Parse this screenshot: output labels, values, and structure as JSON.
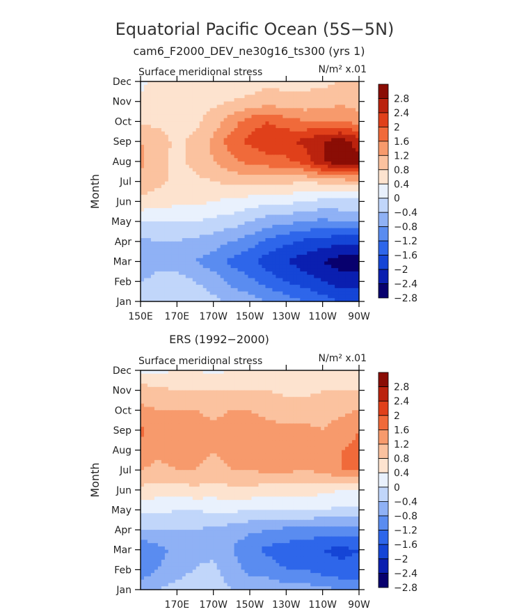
{
  "figure": {
    "title": "Equatorial Pacific Ocean (5S−5N)",
    "subtitle": "cam6_F2000_DEV_ne30g16_ts300 (yrs 1)"
  },
  "chart_data": [
    {
      "type": "heatmap",
      "panel_title": "",
      "variable_label": "Surface meridional stress",
      "units_label": "N/m² x.01",
      "ylabel": "Month",
      "y_ticks": [
        "Jan",
        "Feb",
        "Mar",
        "Apr",
        "May",
        "Jun",
        "Jul",
        "Aug",
        "Sep",
        "Oct",
        "Nov",
        "Dec"
      ],
      "x_ticks": [
        "150E",
        "170E",
        "170W",
        "150W",
        "130W",
        "110W",
        "90W"
      ],
      "x_range_lon": [
        150,
        270
      ],
      "y_range_month": [
        1,
        12
      ],
      "levels": [
        -2.8,
        -2.4,
        -2.0,
        -1.6,
        -1.2,
        -0.8,
        -0.4,
        0.0,
        0.4,
        0.8,
        1.2,
        1.6,
        2.0,
        2.4,
        2.8
      ],
      "colorbar_labels": [
        "2.8",
        "2.4",
        "2",
        "1.6",
        "1.2",
        "0.8",
        "0.4",
        "0",
        "−0.4",
        "−0.8",
        "−1.2",
        "−1.6",
        "−2",
        "−2.4",
        "−2.8"
      ],
      "colors": [
        "#08006e",
        "#0a1fb0",
        "#1545d6",
        "#2e66ea",
        "#5a8cf0",
        "#8fb1f5",
        "#c1d6fa",
        "#e9f1fd",
        "#fde3cf",
        "#fbc29f",
        "#f79a6c",
        "#f06a3a",
        "#e0401a",
        "#bb230e",
        "#8a0d05"
      ],
      "lon": [
        150,
        160,
        170,
        180,
        190,
        200,
        210,
        220,
        230,
        240,
        250,
        260,
        270
      ],
      "months": [
        1,
        2,
        3,
        4,
        5,
        6,
        7,
        8,
        9,
        10,
        11,
        12
      ],
      "values": [
        [
          -0.6,
          -0.4,
          -0.4,
          -0.5,
          -0.7,
          -0.9,
          -1.0,
          -1.2,
          -1.4,
          -1.6,
          -1.8,
          -2.0,
          -2.1
        ],
        [
          -0.8,
          -0.6,
          -0.6,
          -0.8,
          -1.0,
          -1.3,
          -1.5,
          -1.8,
          -2.0,
          -2.2,
          -2.4,
          -2.6,
          -2.6
        ],
        [
          -1.2,
          -1.0,
          -1.0,
          -1.2,
          -1.4,
          -1.7,
          -1.9,
          -2.2,
          -2.4,
          -2.6,
          -2.8,
          -3.0,
          -3.0
        ],
        [
          -0.9,
          -0.8,
          -0.8,
          -0.9,
          -1.0,
          -1.2,
          -1.4,
          -1.7,
          -1.9,
          -2.1,
          -2.2,
          -2.3,
          -2.3
        ],
        [
          -0.4,
          -0.4,
          -0.4,
          -0.4,
          -0.5,
          -0.6,
          -0.8,
          -1.0,
          -1.1,
          -1.2,
          -1.3,
          -1.2,
          -1.2
        ],
        [
          0.3,
          0.2,
          0.1,
          0.1,
          0.0,
          -0.1,
          -0.2,
          -0.3,
          -0.3,
          -0.4,
          -0.5,
          -0.5,
          -0.5
        ],
        [
          0.7,
          0.5,
          0.3,
          0.3,
          0.4,
          0.5,
          0.6,
          0.6,
          0.5,
          0.4,
          0.5,
          0.6,
          0.7
        ],
        [
          0.9,
          0.5,
          0.3,
          0.5,
          0.8,
          1.1,
          1.3,
          1.4,
          1.5,
          1.8,
          2.4,
          2.7,
          2.6
        ],
        [
          0.8,
          0.6,
          0.3,
          0.5,
          0.9,
          1.4,
          1.7,
          1.9,
          1.9,
          2.1,
          2.4,
          2.6,
          2.2
        ],
        [
          0.3,
          0.3,
          0.2,
          0.3,
          0.6,
          1.0,
          1.4,
          1.6,
          1.4,
          1.2,
          1.2,
          1.2,
          1.0
        ],
        [
          0.1,
          0.2,
          0.2,
          0.2,
          0.3,
          0.4,
          0.5,
          0.6,
          0.5,
          0.5,
          0.6,
          0.7,
          0.6
        ],
        [
          -0.1,
          0.1,
          0.1,
          0.1,
          0.2,
          0.2,
          0.2,
          0.3,
          0.3,
          0.3,
          0.3,
          0.4,
          0.4
        ]
      ]
    },
    {
      "type": "heatmap",
      "panel_title": "ERS (1992−2000)",
      "variable_label": "Surface meridional stress",
      "units_label": "N/m² x.01",
      "ylabel": "Month",
      "y_ticks": [
        "Jan",
        "Feb",
        "Mar",
        "Apr",
        "May",
        "Jun",
        "Jul",
        "Aug",
        "Sep",
        "Oct",
        "Nov",
        "Dec"
      ],
      "x_ticks": [
        "170E",
        "170W",
        "150W",
        "130W",
        "110W",
        "90W"
      ],
      "x_range_lon": [
        150,
        270
      ],
      "y_range_month": [
        1,
        12
      ],
      "levels": [
        -2.8,
        -2.4,
        -2.0,
        -1.6,
        -1.2,
        -0.8,
        -0.4,
        0.0,
        0.4,
        0.8,
        1.2,
        1.6,
        2.0,
        2.4,
        2.8
      ],
      "colorbar_labels": [
        "2.8",
        "2.4",
        "2",
        "1.6",
        "1.2",
        "0.8",
        "0.4",
        "0",
        "−0.4",
        "−0.8",
        "−1.2",
        "−1.6",
        "−2",
        "−2.4",
        "−2.8"
      ],
      "colors": [
        "#08006e",
        "#0a1fb0",
        "#1545d6",
        "#2e66ea",
        "#5a8cf0",
        "#8fb1f5",
        "#c1d6fa",
        "#e9f1fd",
        "#fde3cf",
        "#fbc29f",
        "#f79a6c",
        "#f06a3a",
        "#e0401a",
        "#bb230e",
        "#8a0d05"
      ],
      "lon": [
        150,
        160,
        170,
        180,
        190,
        200,
        210,
        220,
        230,
        240,
        250,
        260,
        270
      ],
      "months": [
        1,
        2,
        3,
        4,
        5,
        6,
        7,
        8,
        9,
        10,
        11,
        12
      ],
      "values": [
        [
          -1.0,
          -0.8,
          -0.6,
          -0.5,
          -0.6,
          -0.8,
          -0.9,
          -0.9,
          -1.0,
          -1.0,
          -1.1,
          -1.2,
          -1.2
        ],
        [
          -1.4,
          -1.2,
          -1.0,
          -0.8,
          -0.7,
          -1.0,
          -1.3,
          -1.4,
          -1.6,
          -1.6,
          -1.8,
          -1.9,
          -1.9
        ],
        [
          -1.6,
          -1.3,
          -1.1,
          -0.9,
          -0.9,
          -1.2,
          -1.5,
          -1.7,
          -1.8,
          -1.9,
          -2.0,
          -2.1,
          -2.0
        ],
        [
          -0.8,
          -0.8,
          -0.8,
          -0.8,
          -0.9,
          -1.0,
          -1.1,
          -1.2,
          -1.3,
          -1.3,
          -1.4,
          -1.4,
          -1.3
        ],
        [
          -0.3,
          -0.3,
          -0.4,
          -0.4,
          -0.3,
          -0.3,
          -0.4,
          -0.4,
          -0.4,
          -0.4,
          -0.4,
          -0.5,
          -0.5
        ],
        [
          0.3,
          0.2,
          0.2,
          0.3,
          0.2,
          0.3,
          0.3,
          0.2,
          0.2,
          0.2,
          0.1,
          0.0,
          0.0
        ],
        [
          0.8,
          0.7,
          0.8,
          0.8,
          0.7,
          0.8,
          0.8,
          0.9,
          0.9,
          0.8,
          0.9,
          1.2,
          1.2
        ],
        [
          1.0,
          0.9,
          1.0,
          0.9,
          0.8,
          0.9,
          1.0,
          1.0,
          0.9,
          0.9,
          1.0,
          1.2,
          1.3
        ],
        [
          1.3,
          1.0,
          1.0,
          1.0,
          0.9,
          1.0,
          1.0,
          0.9,
          0.9,
          0.9,
          0.8,
          1.0,
          1.2
        ],
        [
          0.9,
          0.8,
          0.8,
          0.8,
          0.7,
          0.8,
          0.8,
          0.7,
          0.6,
          0.6,
          0.6,
          0.7,
          0.8
        ],
        [
          0.6,
          0.5,
          0.4,
          0.4,
          0.4,
          0.4,
          0.4,
          0.4,
          0.3,
          0.3,
          0.4,
          0.4,
          0.4
        ],
        [
          -0.1,
          -0.1,
          0.0,
          0.0,
          -0.1,
          0.0,
          0.1,
          0.1,
          0.1,
          0.1,
          0.1,
          0.1,
          0.1
        ]
      ]
    }
  ]
}
